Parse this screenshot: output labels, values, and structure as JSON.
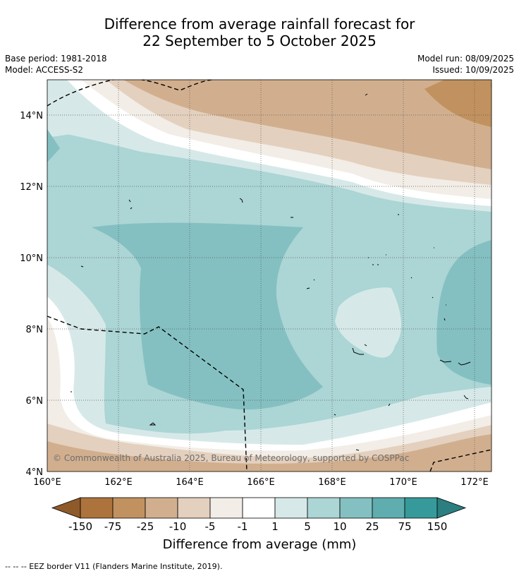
{
  "title_line1": "Difference from average rainfall forecast for",
  "title_line2": "22 September to 5 October 2025",
  "base_period": "Base period: 1981-2018",
  "model": "Model: ACCESS-S2",
  "model_run": "Model run: 08/09/2025",
  "issued": "Issued: 10/09/2025",
  "copyright": "© Commonwealth of Australia 2025, Bureau of Meteorology, supported by COSPPac",
  "lon_ticks": [
    "160°E",
    "162°E",
    "164°E",
    "166°E",
    "168°E",
    "170°E",
    "172°E"
  ],
  "lat_ticks": [
    "14°N",
    "12°N",
    "10°N",
    "8°N",
    "6°N",
    "4°N"
  ],
  "colorbar": {
    "title": "Difference from average (mm)",
    "tick_labels": [
      "-150",
      "-75",
      "-25",
      "-10",
      "-5",
      "-1",
      "1",
      "5",
      "10",
      "25",
      "75",
      "150"
    ],
    "colors": [
      "#8e5a2a",
      "#ad733c",
      "#c1925f",
      "#d1af8e",
      "#e4d0be",
      "#f2ede6",
      "#ffffff",
      "#d6e9e8",
      "#acd5d5",
      "#84c0c1",
      "#5fadae",
      "#379a9a",
      "#2b7f80"
    ]
  },
  "footer": "-- -- -- EEZ border V11 (Flanders Marine Institute, 2019)."
}
